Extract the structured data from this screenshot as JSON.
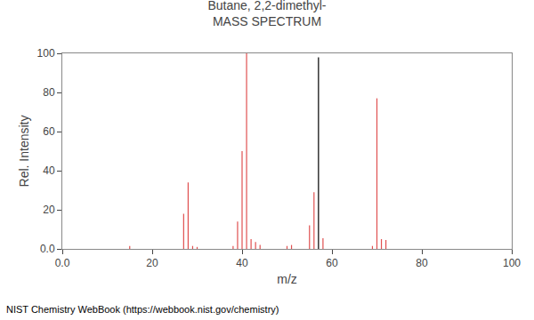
{
  "chart_data": {
    "type": "stem",
    "title": "Butane, 2,2-dimethyl-",
    "subtitle": "MASS SPECTRUM",
    "x_label": "m/z",
    "y_label": "Rel. Intensity",
    "annotations": [
      "NIST Chemistry WebBook (https://webbook.nist.gov/chemistry)"
    ],
    "series": [
      {
        "color": "#e05050",
        "x": [
          15,
          27,
          28,
          29,
          30,
          38,
          39,
          40,
          41,
          42,
          43,
          44,
          50,
          51,
          55,
          56,
          58,
          69,
          70,
          71,
          72
        ],
        "values": [
          1.5,
          18.0,
          34.0,
          1.5,
          1.0,
          1.5,
          14.0,
          50.0,
          100.0,
          5.0,
          3.5,
          2.0,
          1.5,
          2.0,
          12.0,
          29.0,
          5.5,
          1.5,
          77.0,
          5.0,
          4.5
        ]
      },
      {
        "color": "#000000",
        "x": [
          57
        ],
        "values": [
          98.0
        ]
      }
    ],
    "xlim": [
      0.0,
      100.0
    ],
    "ylim": [
      0.0,
      100.0
    ],
    "xticks": [
      {
        "value": 0,
        "label": "0.0"
      },
      20,
      40,
      60,
      80,
      100
    ],
    "yticks": [
      {
        "value": 0,
        "label": "0.0"
      },
      20,
      40,
      60,
      80,
      100
    ],
    "grid": false
  }
}
